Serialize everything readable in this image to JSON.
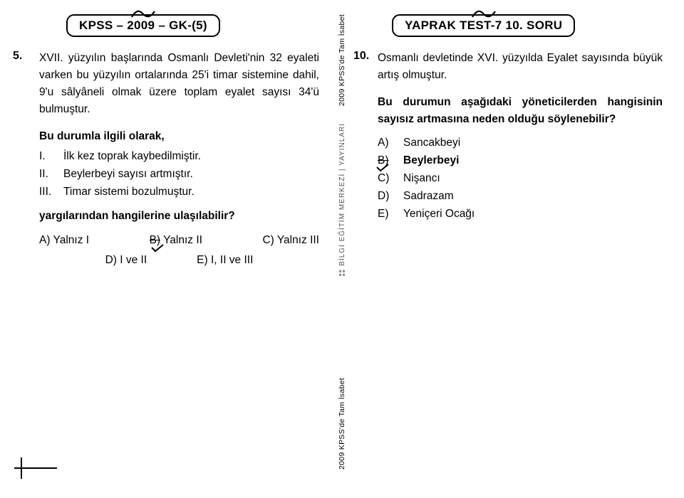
{
  "left": {
    "tab": "KPSS – 2009 – GK-(5)",
    "qnum": "5.",
    "para": "XVII. yüzyılın başlarında Osmanlı Devleti'nin 32 eyaleti varken bu yüzyılın ortalarında 25'i timar sistemine dahil, 9'u sâlyâneli olmak üzere toplam eyalet sayısı 34'ü bulmuştur.",
    "lead": "Bu durumla ilgili olarak,",
    "s1_label": "I.",
    "s1": "İlk kez toprak kaybedilmiştir.",
    "s2_label": "II.",
    "s2": "Beylerbeyi sayısı artmıştır.",
    "s3_label": "III.",
    "s3": "Timar sistemi bozulmuştur.",
    "prompt": "yargılarından hangilerine ulaşılabilir?",
    "oA": "A) Yalnız I",
    "oB": "B) Yalnız II",
    "oC": "C) Yalnız III",
    "oD": "D) I ve II",
    "oE": "E) I, II ve III"
  },
  "right": {
    "tab": "YAPRAK TEST-7  10. SORU",
    "qnum": "10.",
    "para": "Osmanlı devletinde XVI. yüzyılda Eyalet sayısında büyük artış olmuştur.",
    "prompt": "Bu durumun aşağıdaki yöneticilerden hangisinin sayısız artmasına neden olduğu söylenebilir?",
    "aA_l": "A)",
    "aA": "Sancakbeyi",
    "aB_l": "B)",
    "aB": "Beylerbeyi",
    "aC_l": "C)",
    "aC": "Nişancı",
    "aD_l": "D)",
    "aD": "Sadrazam",
    "aE_l": "E)",
    "aE": "Yeniçeri Ocağı"
  },
  "strip": {
    "top": "2009 KPSS'de Tam İsabet",
    "publisher": "BİLGİ EĞİTİM MERKEZİ | YAYINLARI",
    "bottom": "2009 KPSS'de Tam İsabet"
  },
  "colors": {
    "text": "#000000",
    "bg": "#ffffff",
    "tick": "#000000"
  }
}
